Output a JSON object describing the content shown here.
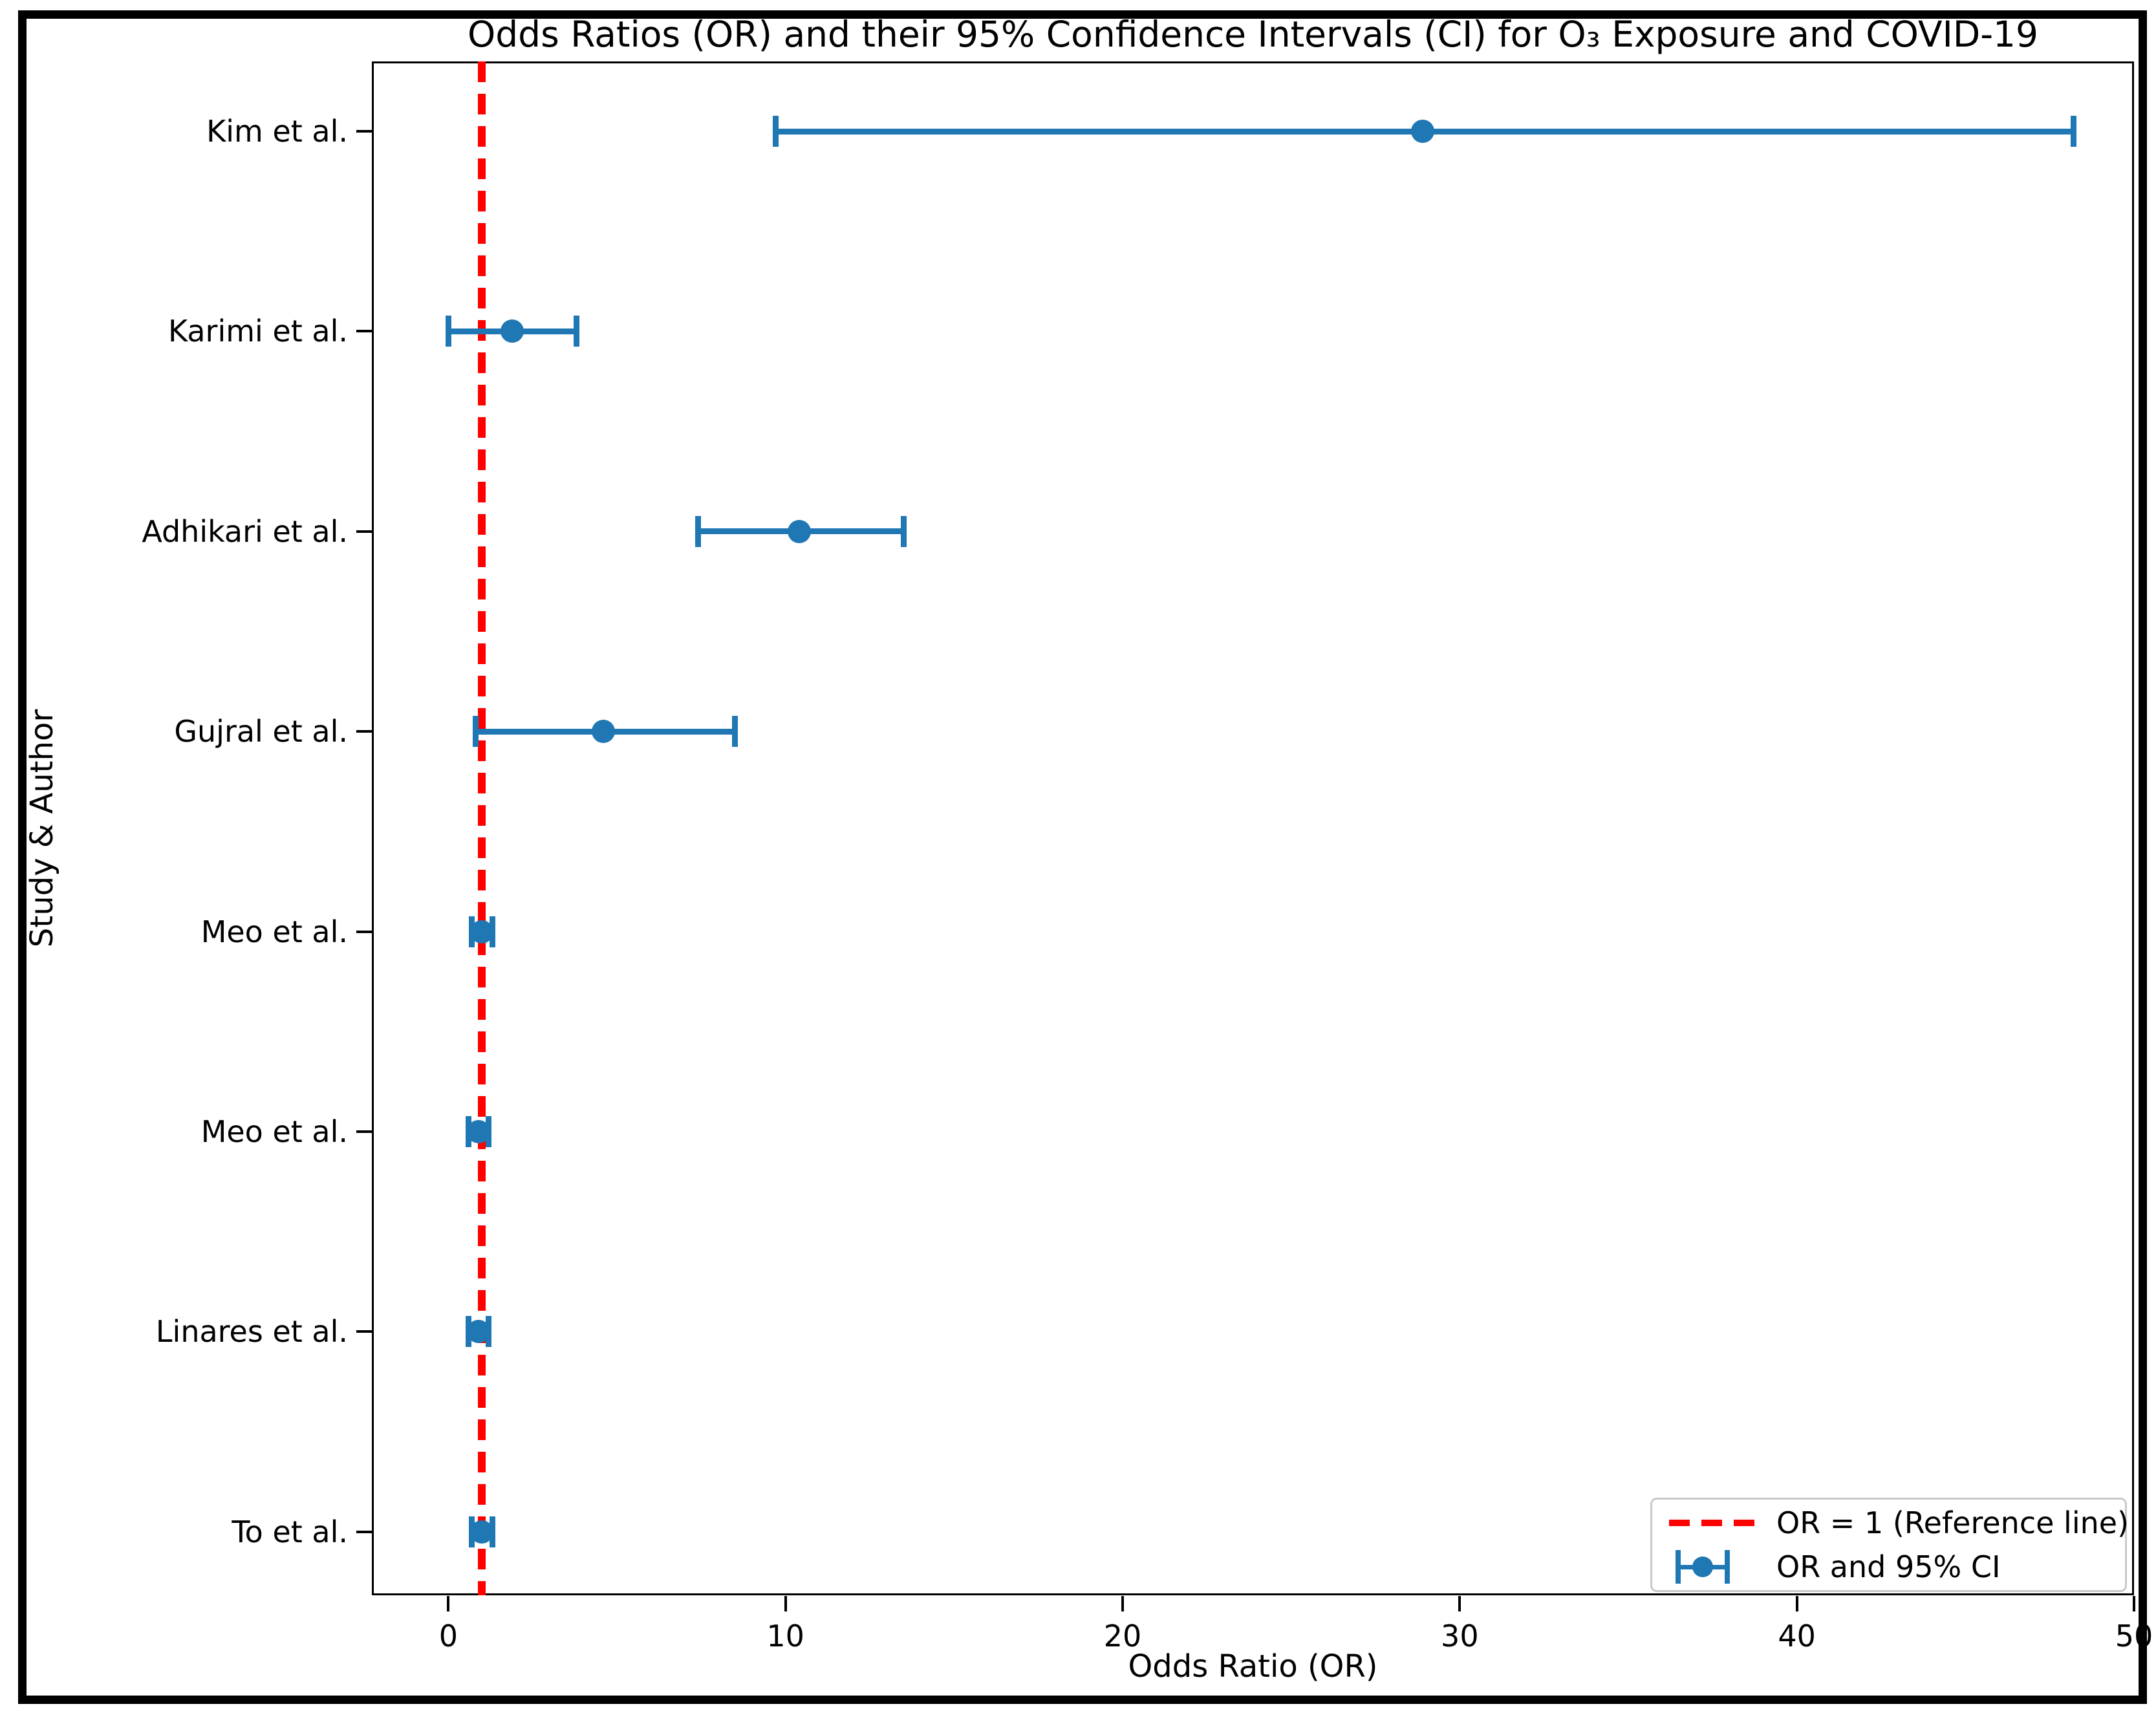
{
  "chart_data": {
    "type": "scatter",
    "subtype": "forest-plot-errorbar",
    "title": "Odds Ratios (OR) and their 95% Confidence Intervals (CI) for O₃ Exposure and COVID-19",
    "xlabel": "Odds Ratio (OR)",
    "ylabel": "Study & Author",
    "x_ticks": [
      0,
      10,
      20,
      30,
      40,
      50
    ],
    "xlim": [
      -2.27,
      50
    ],
    "grid": false,
    "point_color": "#1f77b4",
    "reference_line": {
      "x": 1,
      "color": "#ff0000",
      "style": "dashed",
      "label": "OR = 1 (Reference line)"
    },
    "series_label": "OR and 95% CI",
    "legend_position": "lower right",
    "studies": [
      {
        "label": "Kim et al.",
        "or": 28.9,
        "ci_low": 9.7,
        "ci_high": 48.2
      },
      {
        "label": "Karimi et al.",
        "or": 1.9,
        "ci_low": 0.0,
        "ci_high": 3.8
      },
      {
        "label": "Adhikari et al.",
        "or": 10.4,
        "ci_low": 7.4,
        "ci_high": 13.5
      },
      {
        "label": "Gujral et al.",
        "or": 4.6,
        "ci_low": 0.8,
        "ci_high": 8.5
      },
      {
        "label": "Meo et al.",
        "or": 1.0,
        "ci_low": 0.7,
        "ci_high": 1.3
      },
      {
        "label": "Meo et al.",
        "or": 0.9,
        "ci_low": 0.6,
        "ci_high": 1.2
      },
      {
        "label": "Linares et al.",
        "or": 0.9,
        "ci_low": 0.6,
        "ci_high": 1.2
      },
      {
        "label": "To et al.",
        "or": 1.0,
        "ci_low": 0.7,
        "ci_high": 1.3
      }
    ]
  }
}
